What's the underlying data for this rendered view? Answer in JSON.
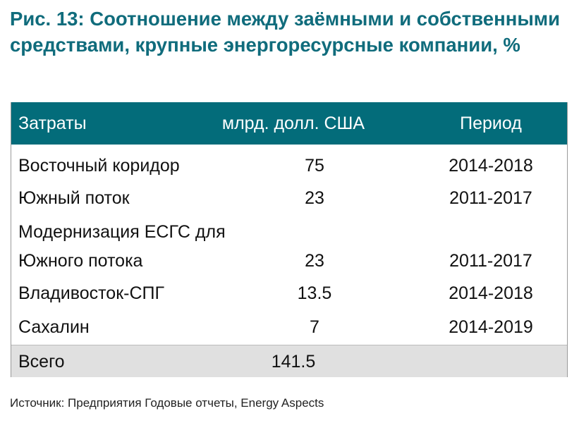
{
  "title": "Рис. 13: Соотношение между заёмными и собственными средствами, крупные энергоресурсные компании, %",
  "table": {
    "headers": [
      "Затраты",
      "млрд. долл. США",
      "Период"
    ],
    "rows": [
      {
        "name": "Восточный коридор",
        "value": "75",
        "period": "2014-2018"
      },
      {
        "name": "Южный поток",
        "value": "23",
        "period": "2011-2017"
      },
      {
        "name": "Модернизация ЕСГС для",
        "name2": "Южного потока",
        "value": "23",
        "period": "2011-2017"
      },
      {
        "name": "Владивосток-СПГ",
        "value": "13.5",
        "period": "2014-2018"
      },
      {
        "name": "Сахалин",
        "value": "7",
        "period": "2014-2019"
      }
    ],
    "total": {
      "name": "Всего",
      "value": "141.5"
    }
  },
  "source": "Источник: Предприятия Годовые отчеты, Energy Aspects"
}
